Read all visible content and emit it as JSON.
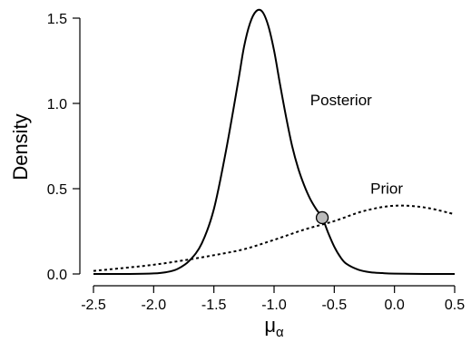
{
  "chart_data": {
    "type": "line",
    "xlabel_main": "μ",
    "xlabel_sub": "α",
    "ylabel": "Density",
    "xlim": [
      -2.5,
      0.5
    ],
    "ylim": [
      0,
      1.5
    ],
    "xticks": [
      -2.5,
      -2.0,
      -1.5,
      -1.0,
      -0.5,
      0.0,
      0.5
    ],
    "xtick_labels": [
      "-2.5",
      "-2.0",
      "-1.5",
      "-1.0",
      "-0.5",
      "0.0",
      "0.5"
    ],
    "yticks": [
      0.0,
      0.5,
      1.0,
      1.5
    ],
    "ytick_labels": [
      "0.0",
      "0.5",
      "1.0",
      "1.5"
    ],
    "grid": false,
    "legend": "none",
    "series": [
      {
        "name": "Posterior",
        "style": "solid",
        "color": "#000000",
        "x": [
          -2.5,
          -2.2,
          -2.0,
          -1.9,
          -1.8,
          -1.7,
          -1.6,
          -1.5,
          -1.4,
          -1.3,
          -1.25,
          -1.2,
          -1.15,
          -1.1,
          -1.05,
          -1.0,
          -0.95,
          -0.9,
          -0.85,
          -0.8,
          -0.75,
          -0.7,
          -0.65,
          -0.6,
          -0.55,
          -0.5,
          -0.45,
          -0.4,
          -0.3,
          -0.2,
          -0.1,
          0.0,
          0.25,
          0.5
        ],
        "values": [
          0.0,
          0.0,
          0.003,
          0.01,
          0.03,
          0.08,
          0.18,
          0.38,
          0.72,
          1.12,
          1.33,
          1.47,
          1.54,
          1.54,
          1.46,
          1.31,
          1.11,
          0.92,
          0.75,
          0.62,
          0.52,
          0.44,
          0.38,
          0.33,
          0.24,
          0.16,
          0.1,
          0.06,
          0.025,
          0.01,
          0.005,
          0.002,
          0.0,
          0.0
        ]
      },
      {
        "name": "Prior",
        "style": "dotted",
        "color": "#000000",
        "x": [
          -2.5,
          -2.25,
          -2.0,
          -1.75,
          -1.5,
          -1.25,
          -1.0,
          -0.75,
          -0.5,
          -0.25,
          0.0,
          0.25,
          0.5
        ],
        "values": [
          0.018,
          0.035,
          0.054,
          0.08,
          0.11,
          0.145,
          0.2,
          0.26,
          0.31,
          0.37,
          0.4,
          0.39,
          0.35
        ]
      }
    ],
    "annotations": [
      {
        "text": "Posterior",
        "x": -0.7,
        "y": 0.99
      },
      {
        "text": "Prior",
        "x": -0.2,
        "y": 0.47
      }
    ],
    "marker": {
      "x": -0.6,
      "y": 0.33,
      "fill": "#bbbbbb",
      "stroke": "#000000"
    }
  }
}
